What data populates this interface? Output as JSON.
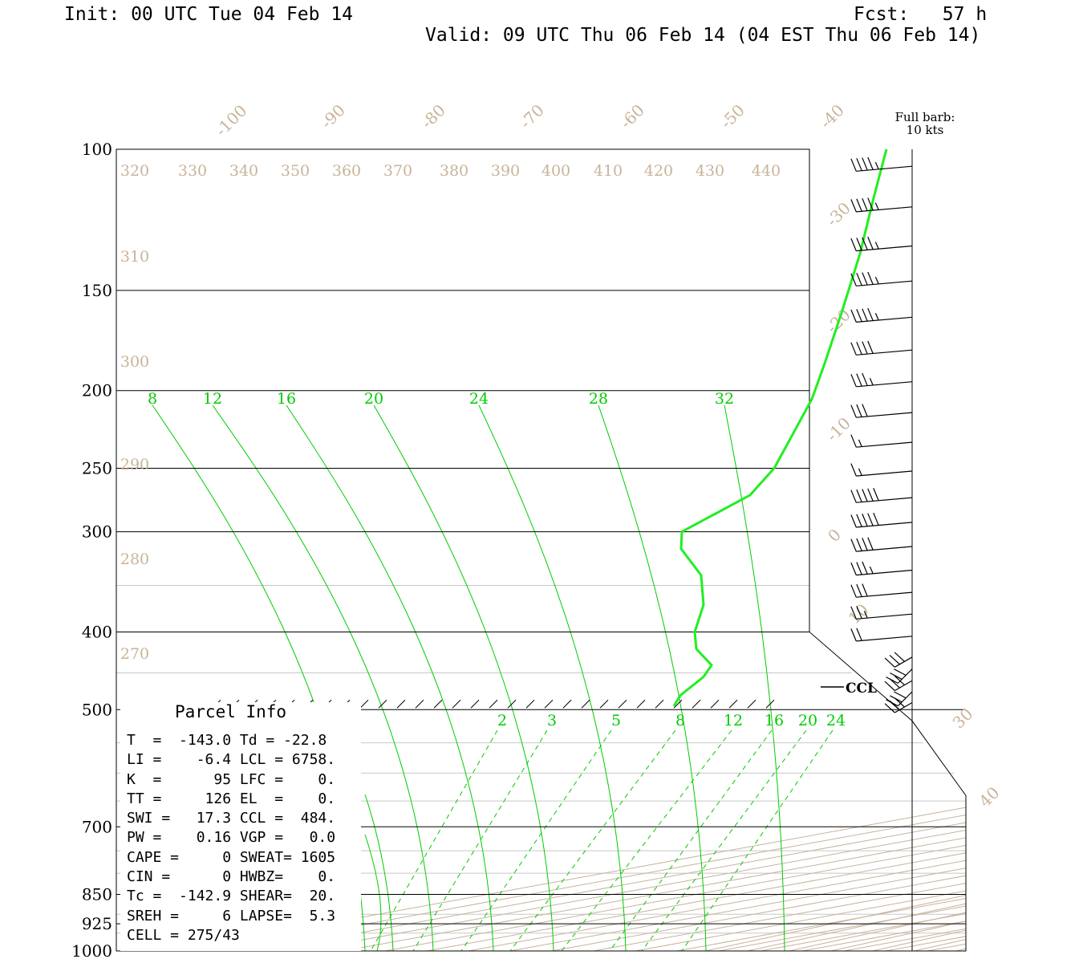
{
  "header": {
    "init": "Init: 00 UTC Tue 04 Feb 14",
    "fcst": "Fcst:   57 h",
    "valid": "Valid: 09 UTC Thu 06 Feb 14 (04 EST Thu 06 Feb 14)"
  },
  "barb_legend": {
    "line1": "Full barb:",
    "line2": "10 kts"
  },
  "ccl_label": "CCL",
  "parcel": {
    "title": "Parcel Info",
    "rows": [
      "T  =  -143.0 Td = -22.8",
      "LI =    -6.4 LCL = 6758.",
      "K  =      95 LFC =    0.",
      "TT =     126 EL  =    0.",
      "SWI =   17.3 CCL =  484.",
      "PW =    0.16 VGP =   0.0",
      "CAPE =     0 SWEAT= 1605",
      "CIN =      0 HWBZ=    0.",
      "Tc =  -142.9 SHEAR=  20.",
      "SREH =     6 LAPSE=  5.3",
      "CELL = 275/43"
    ]
  },
  "colors": {
    "isotherm": "#c9b39a",
    "mixing_ratio": "#00cc00",
    "profile": "#22ee22",
    "frame": "#000000"
  },
  "chart_data": {
    "type": "line",
    "title": "",
    "ylabel": "",
    "pressure_levels": [
      {
        "p": 100,
        "label": "100"
      },
      {
        "p": 150,
        "label": "150"
      },
      {
        "p": 200,
        "label": "200"
      },
      {
        "p": 250,
        "label": "250"
      },
      {
        "p": 300,
        "label": "300"
      },
      {
        "p": 400,
        "label": "400"
      },
      {
        "p": 500,
        "label": "500"
      },
      {
        "p": 700,
        "label": "700"
      },
      {
        "p": 850,
        "label": "850"
      },
      {
        "p": 925,
        "label": "925"
      },
      {
        "p": 1000,
        "label": "1000"
      }
    ],
    "minor_levels": [
      350,
      450,
      550,
      600,
      650,
      750,
      800,
      900,
      950
    ],
    "isotherm_labels": [
      {
        "t": -100,
        "label": "-100"
      },
      {
        "t": -90,
        "label": "-90"
      },
      {
        "t": -80,
        "label": "-80"
      },
      {
        "t": -70,
        "label": "-70"
      },
      {
        "t": -60,
        "label": "-60"
      },
      {
        "t": -50,
        "label": "-50"
      },
      {
        "t": -40,
        "label": "-40"
      },
      {
        "t": -30,
        "label": "-30"
      },
      {
        "t": -20,
        "label": "-20"
      },
      {
        "t": -10,
        "label": "-10"
      },
      {
        "t": 0,
        "label": "0"
      },
      {
        "t": 10,
        "label": "10"
      },
      {
        "t": 30,
        "label": "30"
      },
      {
        "t": 40,
        "label": "40"
      }
    ],
    "theta_upper_labels": [
      "320",
      "330",
      "340",
      "350",
      "360",
      "370",
      "380",
      "390",
      "400",
      "410",
      "420",
      "430",
      "440"
    ],
    "theta_left_labels": [
      {
        "label": "310",
        "p": 132
      },
      {
        "label": "300",
        "p": 185
      },
      {
        "label": "290",
        "p": 252
      },
      {
        "label": "280",
        "p": 330
      },
      {
        "label": "270",
        "p": 430
      }
    ],
    "thetae_labels": [
      "8",
      "12",
      "16",
      "20",
      "24",
      "28",
      "32"
    ],
    "mixing_ratio_labels": [
      "2",
      "3",
      "5",
      "8",
      "12",
      "16",
      "20",
      "24"
    ],
    "profile": [
      {
        "p": 100,
        "t": -33.3
      },
      {
        "p": 115,
        "t": -36.1
      },
      {
        "p": 135,
        "t": -38.3
      },
      {
        "p": 160,
        "t": -41.7
      },
      {
        "p": 185,
        "t": -45.0
      },
      {
        "p": 205,
        "t": -44.4
      },
      {
        "p": 225,
        "t": -45.6
      },
      {
        "p": 250,
        "t": -47.8
      },
      {
        "p": 270,
        "t": -51.7
      },
      {
        "p": 300,
        "t": -59.1
      },
      {
        "p": 315,
        "t": -60.3
      },
      {
        "p": 340,
        "t": -57.6
      },
      {
        "p": 370,
        "t": -57.1
      },
      {
        "p": 400,
        "t": -58.9
      },
      {
        "p": 420,
        "t": -57.9
      },
      {
        "p": 440,
        "t": -54.9
      },
      {
        "p": 455,
        "t": -56.2
      },
      {
        "p": 480,
        "t": -60.4
      },
      {
        "p": 495,
        "t": -61.2
      }
    ],
    "wind_barbs": [
      {
        "p": 105,
        "spd": 45,
        "dir": 268
      },
      {
        "p": 118,
        "spd": 45,
        "dir": 268
      },
      {
        "p": 132,
        "spd": 45,
        "dir": 268
      },
      {
        "p": 146,
        "spd": 45,
        "dir": 268
      },
      {
        "p": 162,
        "spd": 45,
        "dir": 268
      },
      {
        "p": 178,
        "spd": 40,
        "dir": 268
      },
      {
        "p": 195,
        "spd": 35,
        "dir": 268
      },
      {
        "p": 213,
        "spd": 30,
        "dir": 268
      },
      {
        "p": 232,
        "spd": 15,
        "dir": 268
      },
      {
        "p": 252,
        "spd": 15,
        "dir": 268
      },
      {
        "p": 272,
        "spd": 50,
        "dir": 270
      },
      {
        "p": 292,
        "spd": 50,
        "dir": 270
      },
      {
        "p": 313,
        "spd": 40,
        "dir": 270
      },
      {
        "p": 335,
        "spd": 35,
        "dir": 270
      },
      {
        "p": 357,
        "spd": 30,
        "dir": 270
      },
      {
        "p": 380,
        "spd": 25,
        "dir": 270
      },
      {
        "p": 405,
        "spd": 20,
        "dir": 270
      },
      {
        "p": 430,
        "spd": 30,
        "dir": 260
      },
      {
        "p": 445,
        "spd": 30,
        "dir": 255
      },
      {
        "p": 460,
        "spd": 30,
        "dir": 250
      },
      {
        "p": 475,
        "spd": 30,
        "dir": 245
      },
      {
        "p": 490,
        "spd": 30,
        "dir": 240
      }
    ]
  }
}
